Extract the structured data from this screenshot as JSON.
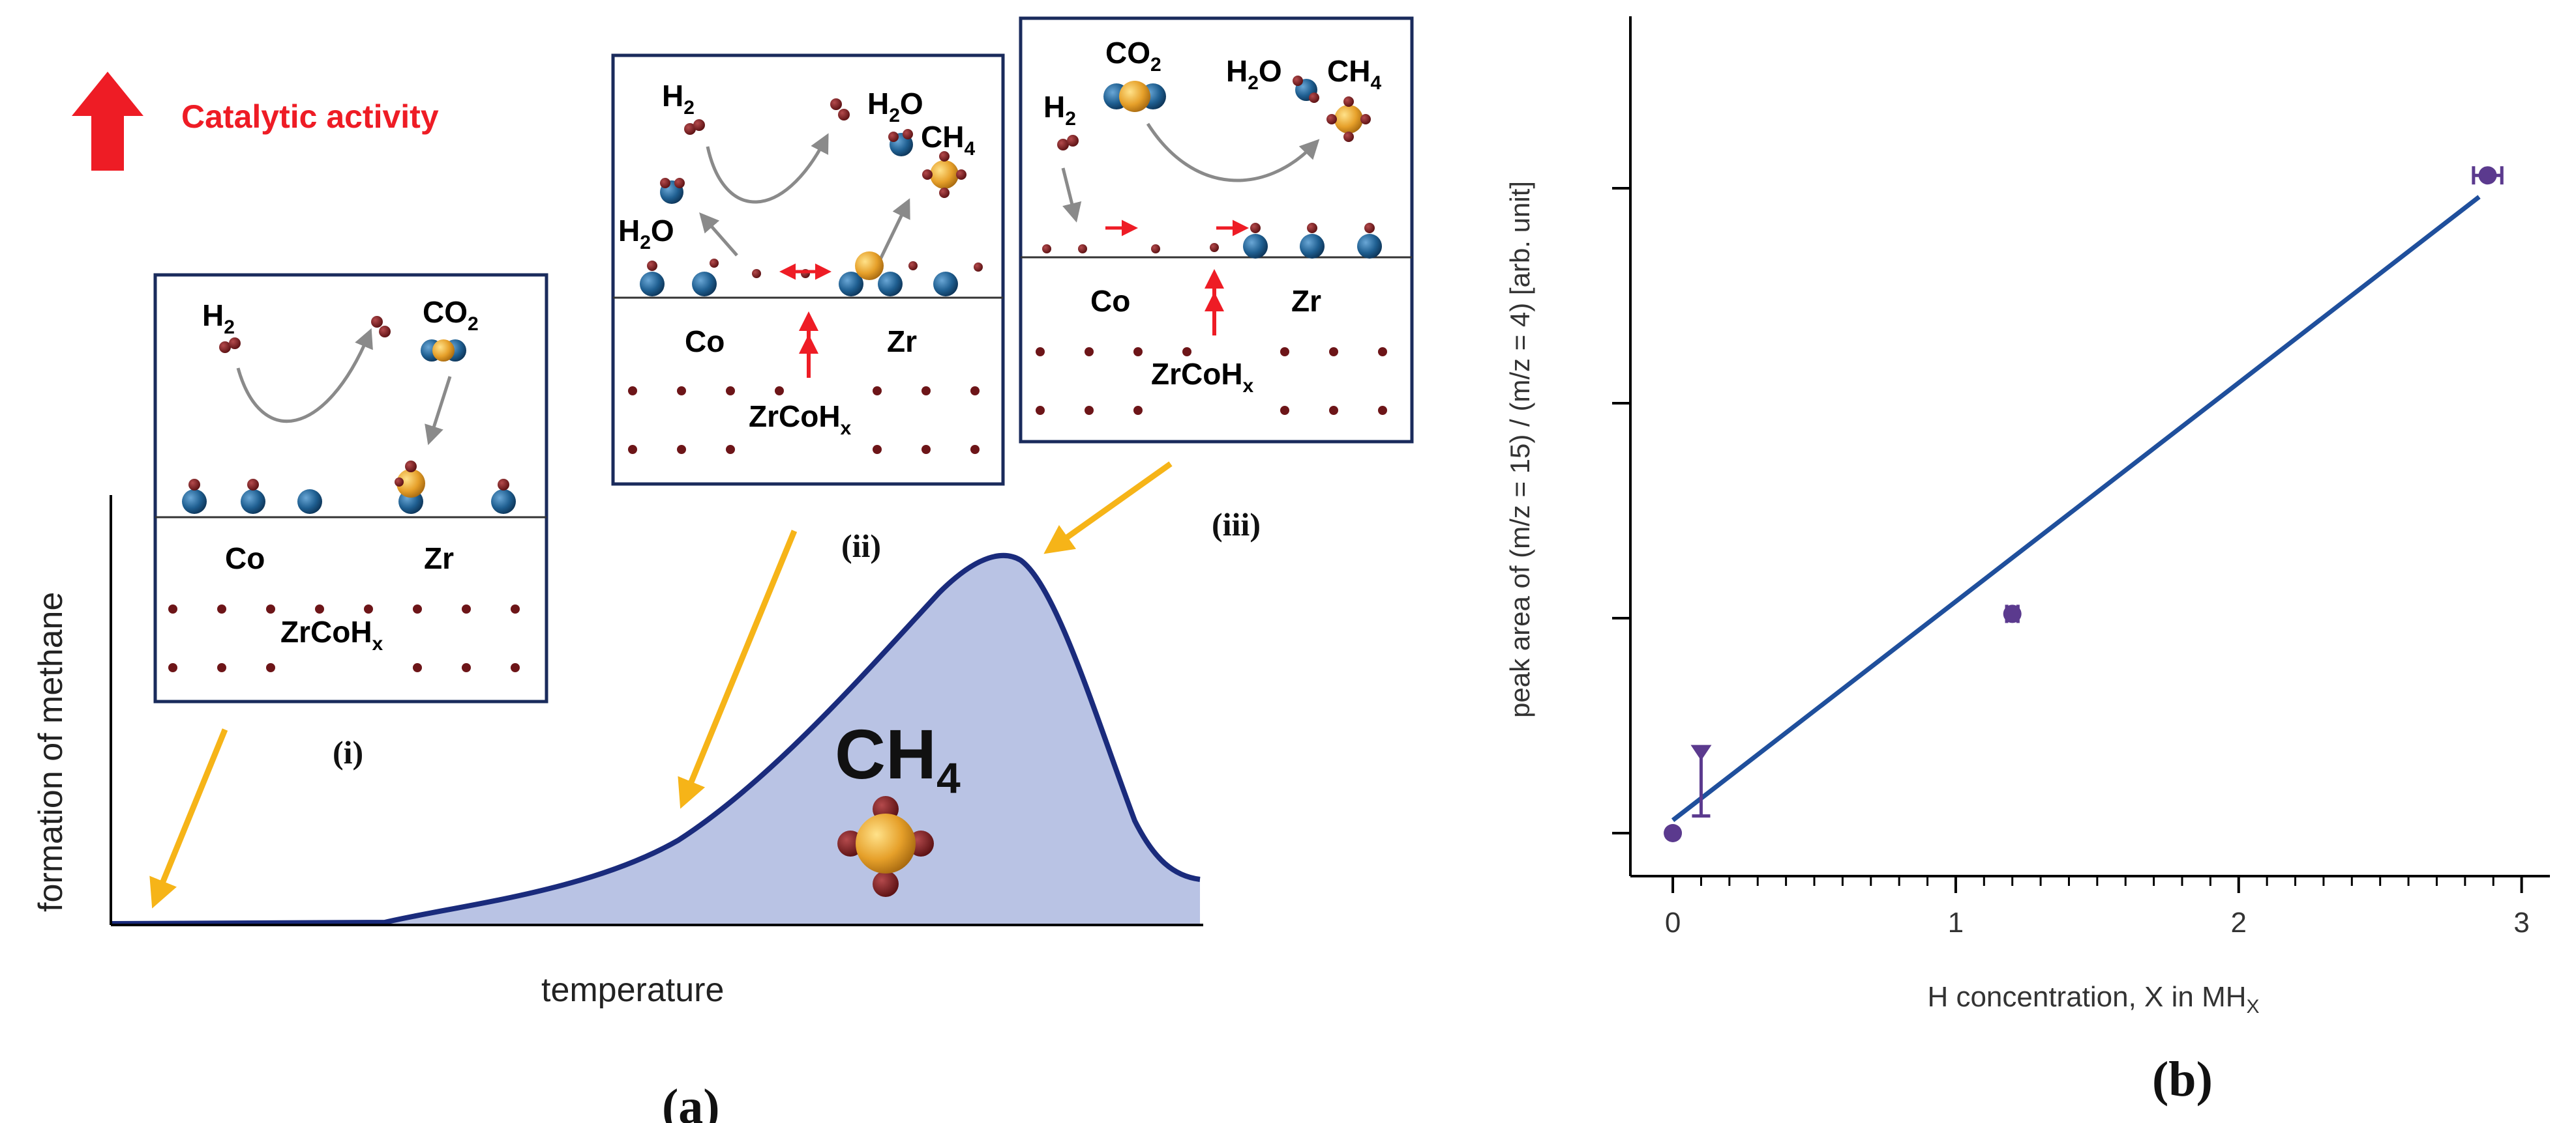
{
  "colors": {
    "red": "#ee1c25",
    "navy": "#1a2b7c",
    "peak_fill": "#b9c3e4",
    "orange_arrow": "#f6b418",
    "blue_atom": "#1f5f91",
    "orange_atom": "#e6a02a",
    "maroon_atom": "#6d1518",
    "line_blue": "#1f4f9c",
    "marker_purple": "#5b3a8e",
    "grey_arrow": "#8a8a8a"
  },
  "panel_a": {
    "label": "(a)",
    "catalytic_activity": "Catalytic activity",
    "y_axis_label": "formation of methane",
    "x_axis_label": "temperature",
    "product_label": "CH",
    "product_sub": "4",
    "stages": [
      {
        "label": "(i)",
        "reactant_h2": "H",
        "reactant_h2_sub": "2",
        "reactant_co2": "CO",
        "reactant_co2_sub": "2",
        "metal_co": "Co",
        "metal_zr": "Zr",
        "bulk": "ZrCoH",
        "bulk_sub": "x"
      },
      {
        "label": "(ii)",
        "reactant_h2": "H",
        "reactant_h2_sub": "2",
        "product_h2o": "H",
        "product_h2o_sub": "2",
        "product_h2o_tail": "O",
        "product_ch4": "CH",
        "product_ch4_sub": "4",
        "left_h2o": "H",
        "left_h2o_sub": "2",
        "left_h2o_tail": "O",
        "metal_co": "Co",
        "metal_zr": "Zr",
        "bulk": "ZrCoH",
        "bulk_sub": "x"
      },
      {
        "label": "(iii)",
        "reactant_h2": "H",
        "reactant_h2_sub": "2",
        "reactant_co2": "CO",
        "reactant_co2_sub": "2",
        "product_h2o": "H",
        "product_h2o_sub": "2",
        "product_h2o_tail": "O",
        "product_ch4": "CH",
        "product_ch4_sub": "4",
        "metal_co": "Co",
        "metal_zr": "Zr",
        "bulk": "ZrCoH",
        "bulk_sub": "x"
      }
    ]
  },
  "chart_data": {
    "type": "scatter",
    "panel_label": "(b)",
    "xlabel": "H concentration, X in MH",
    "xlabel_sub": "X",
    "ylabel": "peak area of (m/z = 15) / (m/z = 4) [arb. unit]",
    "xlim": [
      -0.15,
      3.1
    ],
    "ylim": [
      -0.1,
      1.9
    ],
    "x_ticks": [
      0,
      1,
      2,
      3
    ],
    "x_tick_labels": [
      "0",
      "1",
      "2",
      "3"
    ],
    "y_ticks": [
      0,
      0.5,
      1.0,
      1.5
    ],
    "y_tick_labels": [
      "",
      "",
      "",
      ""
    ],
    "points": [
      {
        "x": 0.0,
        "y": 0.0,
        "xerr": 0,
        "yerr_low": 0,
        "yerr_high": 0
      },
      {
        "x": 0.1,
        "y": 0.19,
        "xerr": 0,
        "yerr_low": 0.15,
        "yerr_high": 0
      },
      {
        "x": 1.2,
        "y": 0.51,
        "xerr": 0.02,
        "yerr_low": 0,
        "yerr_high": 0
      },
      {
        "x": 2.88,
        "y": 1.53,
        "xerr": 0.05,
        "yerr_low": 0,
        "yerr_high": 0
      }
    ],
    "fit_line": {
      "x": [
        0.0,
        2.85
      ],
      "y": [
        0.03,
        1.48
      ]
    }
  }
}
